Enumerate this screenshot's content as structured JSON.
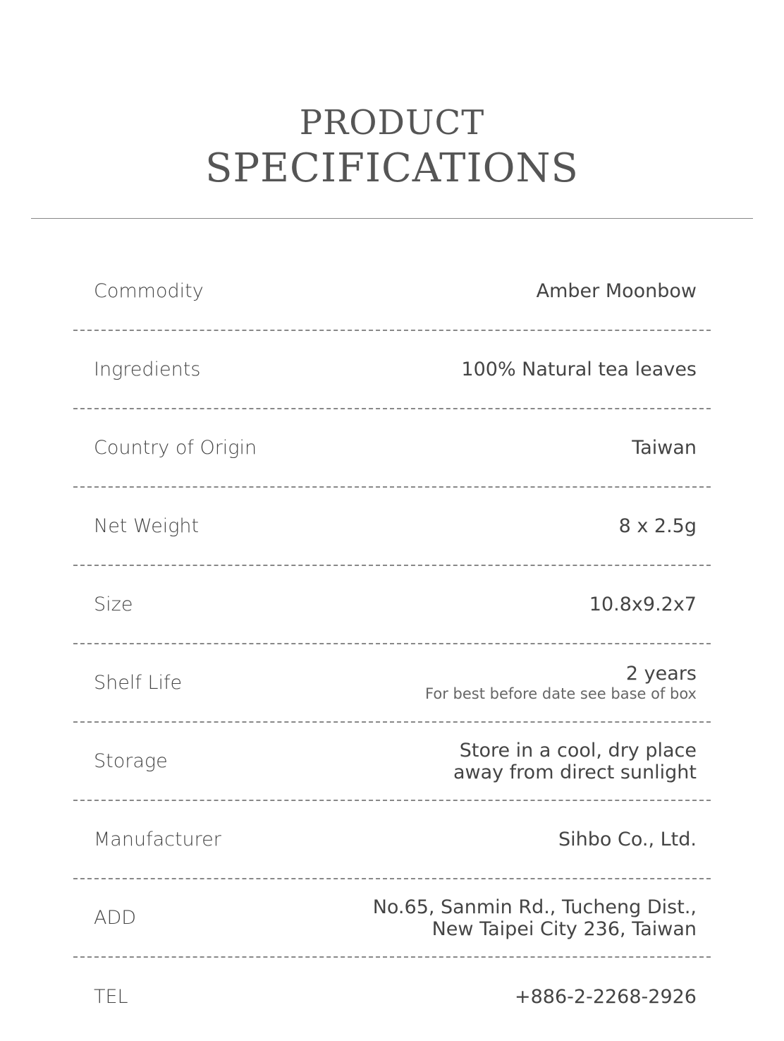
{
  "header": {
    "title_line1": "PRODUCT",
    "title_line2": "SPECIFICATIONS"
  },
  "specs": [
    {
      "label": "Commodity",
      "value": "Amber Moonbow"
    },
    {
      "label": "Ingredients",
      "value": "100% Natural tea leaves"
    },
    {
      "label": "Country of Origin",
      "value": "Taiwan"
    },
    {
      "label": "Net Weight",
      "value": "8 x 2.5g"
    },
    {
      "label": "Size",
      "value": "10.8x9.2x7"
    },
    {
      "label": "Shelf Life",
      "value": "2 years",
      "note": "For best before date see base of box"
    },
    {
      "label": "Storage",
      "value": "Store in a cool, dry place",
      "value2": "away from direct sunlight"
    },
    {
      "label": "Manufacturer",
      "value": "Sihbo Co., Ltd."
    },
    {
      "label": "ADD",
      "value": "No.65, Sanmin Rd., Tucheng Dist.,",
      "value2": "New Taipei City 236, Taiwan"
    },
    {
      "label": "TEL",
      "value": "+886-2-2268-2926"
    }
  ]
}
